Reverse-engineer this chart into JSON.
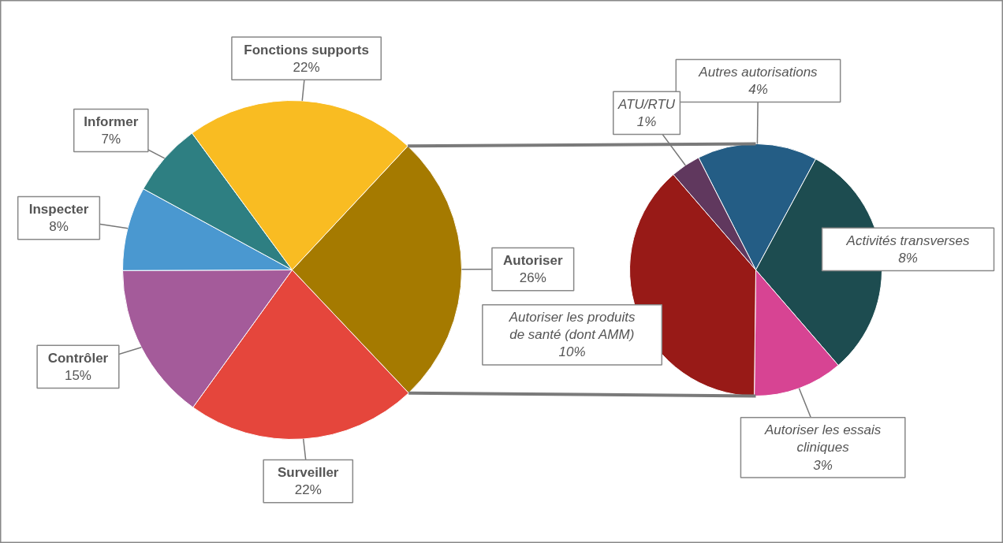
{
  "chart_data": [
    {
      "type": "pie",
      "categories": [
        "Autoriser",
        "Surveiller",
        "Contrôler",
        "Inspecter",
        "Informer",
        "Fonctions supports"
      ],
      "values": [
        26,
        22,
        15,
        8,
        7,
        22
      ],
      "value_labels": [
        "26%",
        "22%",
        "15%",
        "8%",
        "7%",
        "22%"
      ],
      "colors": [
        "#a57a00",
        "#e5463c",
        "#a45b9a",
        "#4a98d0",
        "#2e7f82",
        "#f9bc22"
      ]
    },
    {
      "type": "pie",
      "categories": [
        "Autres autorisations",
        "Activités transverses",
        "Autoriser les essais cliniques",
        "Autoriser les produits de santé (dont AMM)",
        "ATU/RTU"
      ],
      "values": [
        4,
        8,
        3,
        10,
        1
      ],
      "value_labels": [
        "4%",
        "8%",
        "3%",
        "10%",
        "1%"
      ],
      "colors": [
        "#245d85",
        "#1d4c50",
        "#d74493",
        "#981a17",
        "#60385e"
      ]
    }
  ]
}
